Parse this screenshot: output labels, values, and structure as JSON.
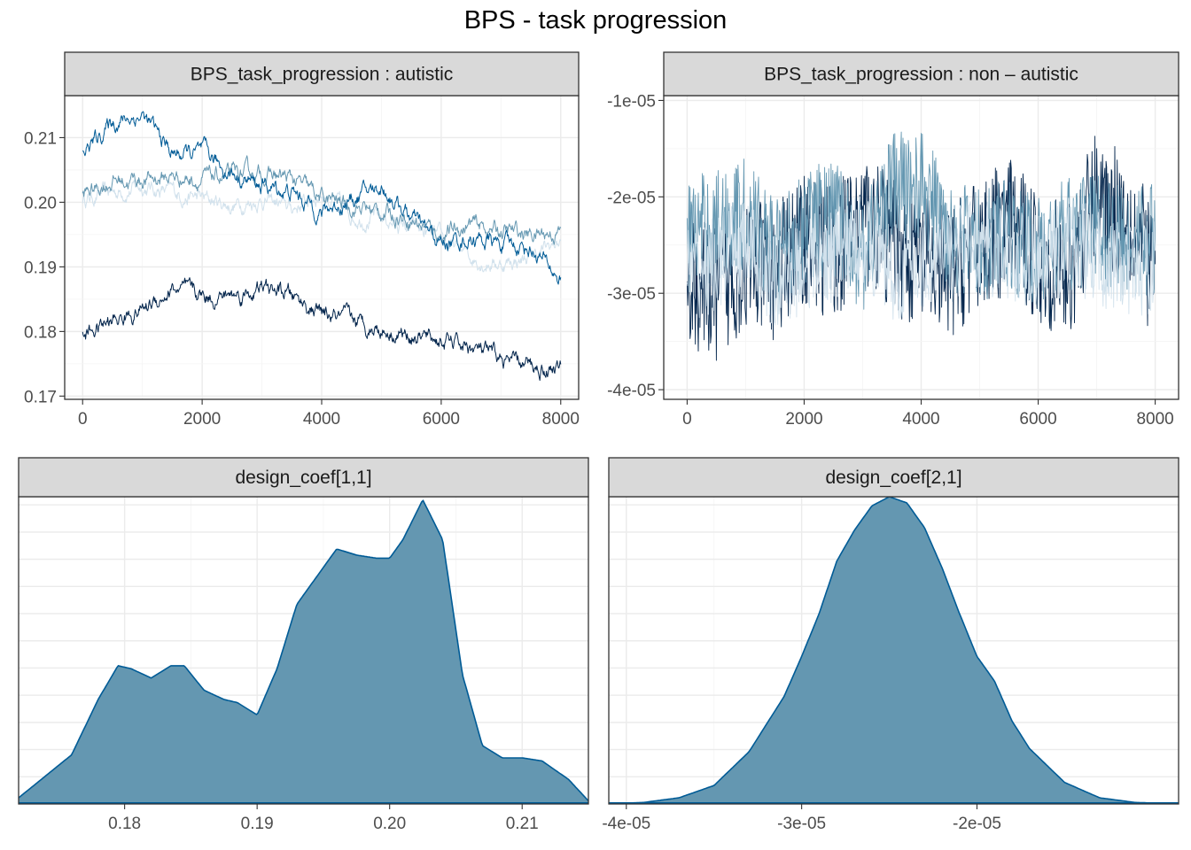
{
  "title": "BPS - task progression",
  "colors": {
    "chain_1": "#d1e1ec",
    "chain_2": "#6497b1",
    "chain_3": "#005b96",
    "chain_4": "#03254c",
    "density_fill": "#6497b1",
    "density_line": "#005b96",
    "strip_bg": "#d9d9d9"
  },
  "chart_data": [
    {
      "type": "line",
      "strip": "BPS_task_progression : autistic",
      "x_ticks": [
        0,
        2000,
        4000,
        6000,
        8000
      ],
      "y_ticks": [
        0.17,
        0.18,
        0.19,
        0.2,
        0.21
      ],
      "y_tick_labels": [
        "0.17",
        "0.18",
        "0.19",
        "0.20",
        "0.21"
      ],
      "xlim": [
        -300,
        8300
      ],
      "ylim": [
        0.1695,
        0.2165
      ],
      "grid": true,
      "series": [
        {
          "color_key": "chain_1",
          "x": [
            0,
            500,
            1000,
            1500,
            2000,
            2500,
            3000,
            3500,
            4000,
            4500,
            5000,
            5500,
            6000,
            6500,
            7000,
            7500,
            8000
          ],
          "values": [
            0.2005,
            0.2015,
            0.2025,
            0.2015,
            0.2005,
            0.1995,
            0.2005,
            0.199,
            0.2015,
            0.198,
            0.1975,
            0.196,
            0.194,
            0.1915,
            0.1905,
            0.1915,
            0.194
          ]
        },
        {
          "color_key": "chain_2",
          "x": [
            0,
            500,
            1000,
            1500,
            2000,
            2500,
            3000,
            3500,
            4000,
            4500,
            5000,
            5500,
            6000,
            6500,
            7000,
            7500,
            8000
          ],
          "values": [
            0.201,
            0.2035,
            0.2035,
            0.204,
            0.2035,
            0.204,
            0.2045,
            0.2035,
            0.2005,
            0.1995,
            0.1985,
            0.1975,
            0.195,
            0.1965,
            0.1955,
            0.195,
            0.1955
          ]
        },
        {
          "color_key": "chain_3",
          "x": [
            0,
            500,
            1000,
            1500,
            2000,
            2500,
            3000,
            3500,
            4000,
            4500,
            5000,
            5500,
            6000,
            6500,
            7000,
            7500,
            8000
          ],
          "values": [
            0.2075,
            0.2125,
            0.2135,
            0.2075,
            0.2075,
            0.2045,
            0.2025,
            0.2015,
            0.1985,
            0.2005,
            0.2025,
            0.1975,
            0.1935,
            0.1945,
            0.1935,
            0.193,
            0.188
          ]
        },
        {
          "color_key": "chain_4",
          "x": [
            0,
            500,
            1000,
            1500,
            2000,
            2500,
            3000,
            3500,
            4000,
            4500,
            5000,
            5500,
            6000,
            6500,
            7000,
            7500,
            8000
          ],
          "values": [
            0.1795,
            0.1815,
            0.1835,
            0.1865,
            0.1855,
            0.1855,
            0.1865,
            0.1855,
            0.1825,
            0.1815,
            0.1805,
            0.1795,
            0.1785,
            0.1775,
            0.1755,
            0.1745,
            0.1745
          ]
        }
      ]
    },
    {
      "type": "line",
      "strip": "BPS_task_progression : non – autistic",
      "x_ticks": [
        0,
        2000,
        4000,
        6000,
        8000
      ],
      "y_ticks": [
        -4e-05,
        -3e-05,
        -2e-05,
        -1e-05
      ],
      "y_tick_labels": [
        "-4e-05",
        "-3e-05",
        "-2e-05",
        "-1e-05"
      ],
      "xlim": [
        -400,
        8400
      ],
      "ylim": [
        -4.1e-05,
        -9.5e-06
      ],
      "grid": true,
      "series": [
        {
          "color_key": "chain_4",
          "x": [
            0,
            500,
            1000,
            1500,
            2000,
            2500,
            3000,
            3500,
            4000,
            4500,
            5000,
            5500,
            6000,
            6500,
            7000,
            7500,
            8000
          ],
          "mean": [
            -2.9e-05,
            -3e-05,
            -2.7e-05,
            -2.8e-05,
            -2.4e-05,
            -2.6e-05,
            -2.2e-05,
            -2.5e-05,
            -2.7e-05,
            -2.8e-05,
            -2.5e-05,
            -2.3e-05,
            -2.6e-05,
            -2.8e-05,
            -2e-05,
            -2.2e-05,
            -2.8e-05
          ],
          "spread": 7e-06
        },
        {
          "color_key": "chain_2",
          "x": [
            0,
            500,
            1000,
            1500,
            2000,
            2500,
            3000,
            3500,
            4000,
            4500,
            5000,
            5500,
            6000,
            6500,
            7000,
            7500,
            8000
          ],
          "mean": [
            -2.4e-05,
            -2.3e-05,
            -2.2e-05,
            -2.6e-05,
            -2.3e-05,
            -2.2e-05,
            -2.6e-05,
            -1.9e-05,
            -1.9e-05,
            -2.4e-05,
            -2.5e-05,
            -2.4e-05,
            -2.6e-05,
            -2.4e-05,
            -2.3e-05,
            -2.5e-05,
            -2.4e-05
          ],
          "spread": 6e-06
        },
        {
          "color_key": "chain_1",
          "x": [
            0,
            500,
            1000,
            1500,
            2000,
            2500,
            3000,
            3500,
            4000,
            4500,
            5000,
            5500,
            6000,
            6500,
            7000,
            7500,
            8000
          ],
          "mean": [
            -2.8e-05,
            -2.7e-05,
            -2.5e-05,
            -2.9e-05,
            -2.7e-05,
            -2.6e-05,
            -2.4e-05,
            -2.8e-05,
            -2.7e-05,
            -2.6e-05,
            -2.5e-05,
            -2.6e-05,
            -2.7e-05,
            -2.5e-05,
            -2.6e-05,
            -2.8e-05,
            -2.7e-05
          ],
          "spread": 5e-06
        }
      ]
    },
    {
      "type": "area",
      "strip": "design_coef[1,1]",
      "x_ticks": [
        0.18,
        0.19,
        0.2,
        0.21
      ],
      "x_tick_labels": [
        "0.18",
        "0.19",
        "0.20",
        "0.21"
      ],
      "xlim": [
        0.172,
        0.215
      ],
      "ylim": [
        0,
        1.0
      ],
      "grid": true,
      "x": [
        0.172,
        0.174,
        0.176,
        0.178,
        0.1795,
        0.1805,
        0.182,
        0.1835,
        0.1845,
        0.186,
        0.1875,
        0.1885,
        0.19,
        0.1915,
        0.193,
        0.1945,
        0.196,
        0.1975,
        0.199,
        0.2,
        0.201,
        0.2025,
        0.204,
        0.2055,
        0.207,
        0.2085,
        0.21,
        0.2115,
        0.2135,
        0.215
      ],
      "values": [
        0.02,
        0.09,
        0.16,
        0.34,
        0.45,
        0.44,
        0.41,
        0.45,
        0.45,
        0.37,
        0.34,
        0.33,
        0.29,
        0.44,
        0.65,
        0.74,
        0.83,
        0.81,
        0.8,
        0.8,
        0.86,
        0.99,
        0.86,
        0.42,
        0.19,
        0.15,
        0.15,
        0.14,
        0.08,
        0.01
      ]
    },
    {
      "type": "area",
      "strip": "design_coef[2,1]",
      "x_ticks": [
        -4e-05,
        -3e-05,
        -2e-05
      ],
      "x_tick_labels": [
        "-4e-05",
        "-3e-05",
        "-2e-05"
      ],
      "xlim": [
        -4.1e-05,
        -8.5e-06
      ],
      "ylim": [
        0,
        1.0
      ],
      "grid": true,
      "x": [
        -4.1e-05,
        -3.9e-05,
        -3.7e-05,
        -3.5e-05,
        -3.3e-05,
        -3.1e-05,
        -3e-05,
        -2.9e-05,
        -2.8e-05,
        -2.7e-05,
        -2.6e-05,
        -2.5e-05,
        -2.4e-05,
        -2.3e-05,
        -2.2e-05,
        -2.1e-05,
        -2e-05,
        -1.9e-05,
        -1.8e-05,
        -1.7e-05,
        -1.5e-05,
        -1.3e-05,
        -1.1e-05,
        -8.5e-06
      ],
      "values": [
        0.0,
        0.005,
        0.02,
        0.06,
        0.17,
        0.35,
        0.48,
        0.62,
        0.79,
        0.89,
        0.97,
        1.0,
        0.98,
        0.9,
        0.77,
        0.62,
        0.48,
        0.4,
        0.27,
        0.18,
        0.07,
        0.02,
        0.005,
        0.0
      ]
    }
  ]
}
